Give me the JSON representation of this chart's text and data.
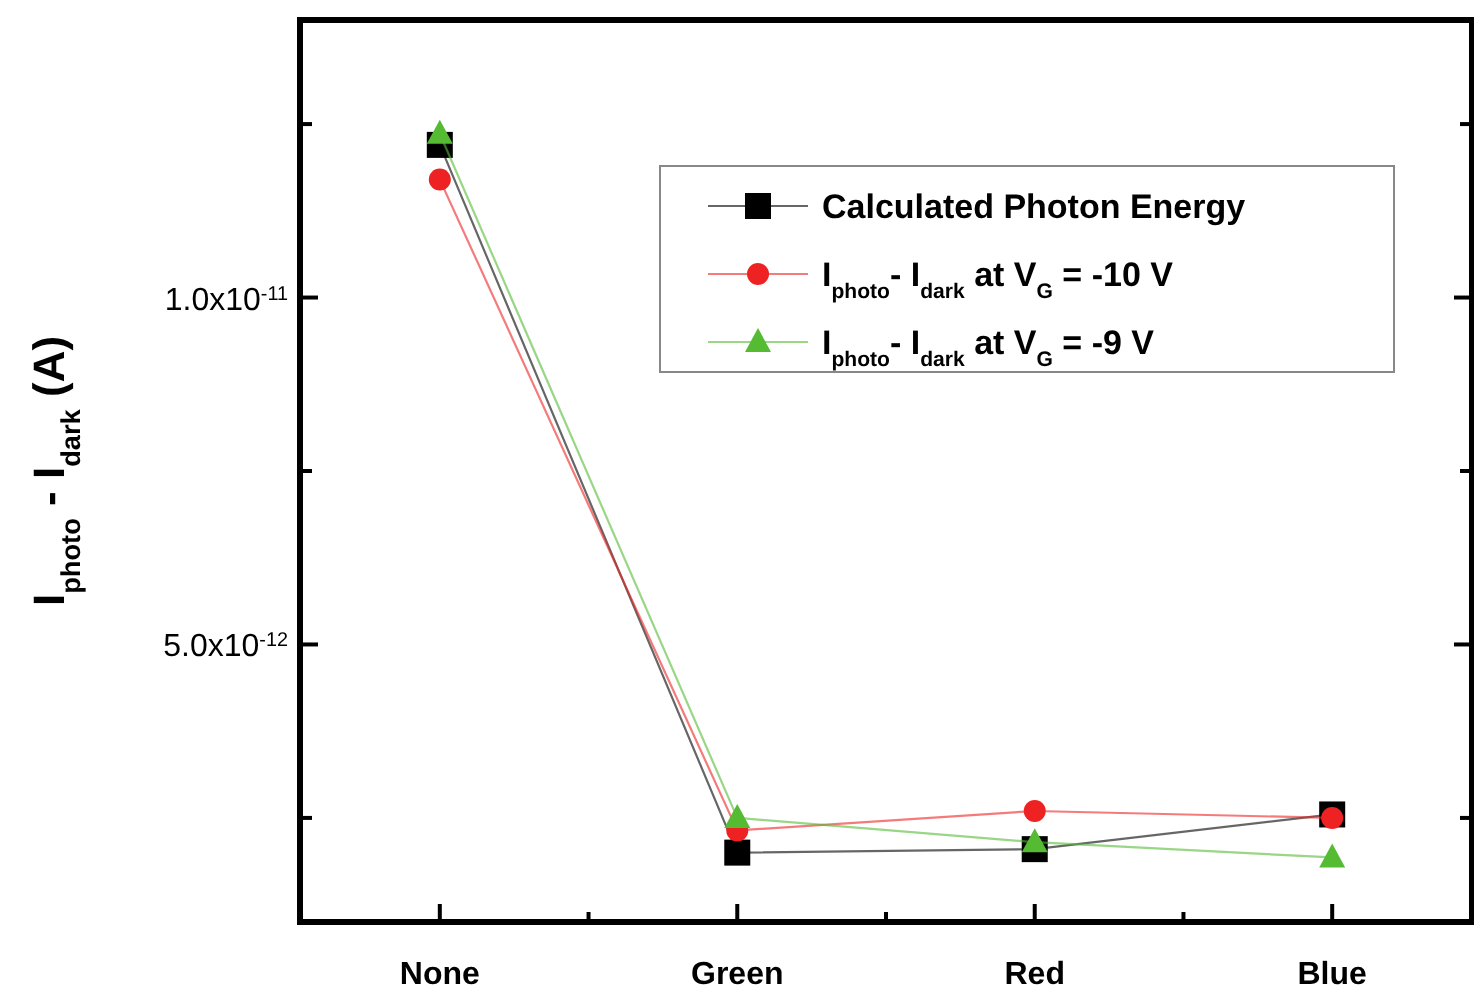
{
  "chart_data": {
    "type": "line",
    "ylabel": "I$_{photo}$ - I$_{dark}$ (A)",
    "categories": [
      "None",
      "Green",
      "Red",
      "Blue"
    ],
    "ylim": [
      1e-12,
      1.4e-11
    ],
    "yticks": [
      {
        "value": 2.5e-12,
        "label": null
      },
      {
        "value": 5e-12,
        "label": "5.0x10$^{-12}$"
      },
      {
        "value": 7.5e-12,
        "label": null
      },
      {
        "value": 1e-11,
        "label": "1.0x10$^{-11}$"
      },
      {
        "value": 1.25e-11,
        "label": null
      }
    ],
    "series": [
      {
        "name": "Calculated Photon Energy",
        "color": "#000000",
        "marker": "square",
        "values": [
          1.22e-11,
          2e-12,
          2.05e-12,
          2.55e-12
        ]
      },
      {
        "name": "I$_{photo}$- I$_{dark}$ at V$_{G}$ = -10 V",
        "color": "#ee2222",
        "marker": "circle",
        "values": [
          1.17e-11,
          2.32e-12,
          2.6e-12,
          2.5e-12
        ]
      },
      {
        "name": "I$_{photo}$- I$_{dark}$ at V$_{G}$ = -9 V",
        "color": "#55bb33",
        "marker": "triangle",
        "values": [
          1.236e-11,
          2.5e-12,
          2.15e-12,
          1.93e-12
        ]
      }
    ],
    "grid": false,
    "legend": "top right",
    "line_style": "solid"
  }
}
